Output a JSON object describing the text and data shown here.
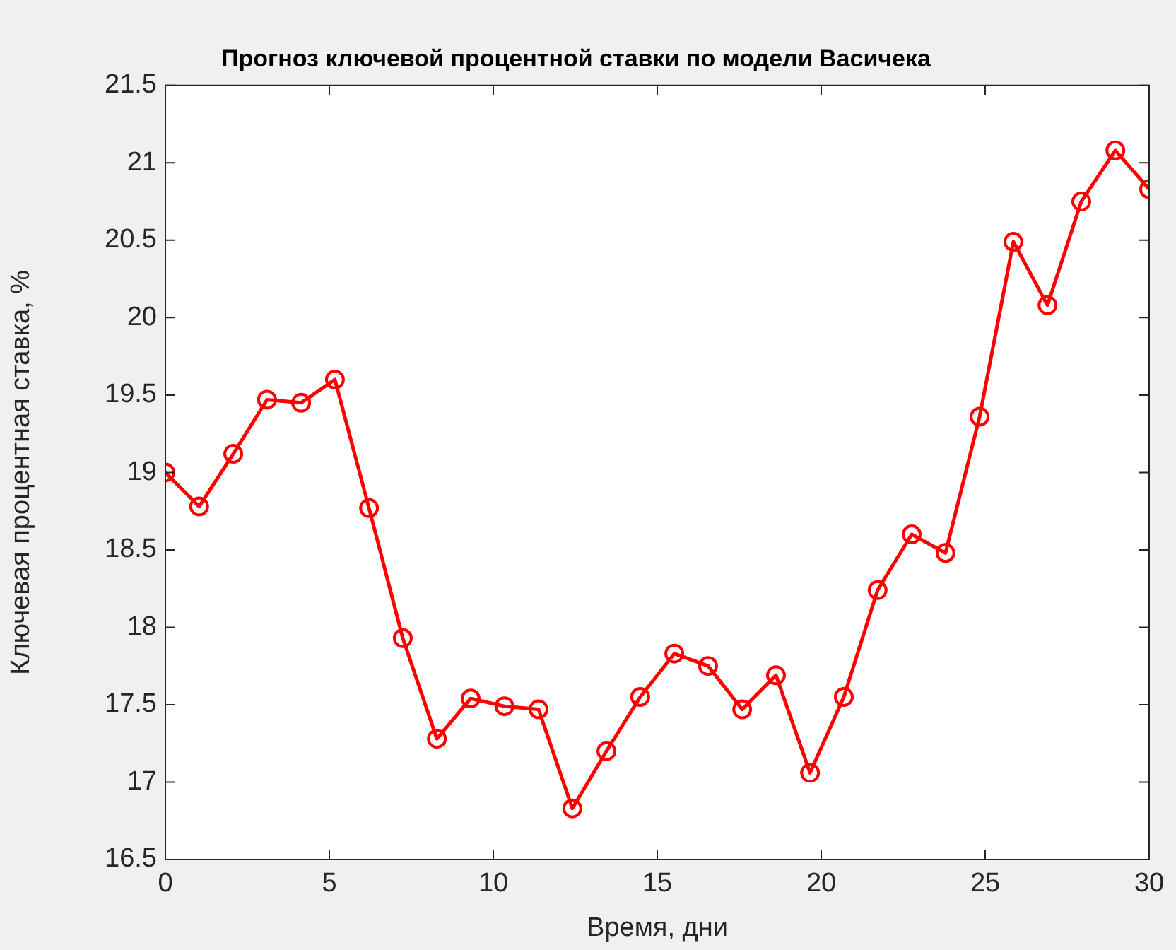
{
  "chart_data": {
    "type": "line",
    "title": "Прогноз ключевой процентной ставки по модели Васичека",
    "xlabel": "Время, дни",
    "ylabel": "Ключевая процентная ставка, %",
    "x": [
      0,
      1.03,
      2.07,
      3.1,
      4.14,
      5.17,
      6.21,
      7.24,
      8.28,
      9.31,
      10.34,
      11.38,
      12.41,
      13.45,
      14.48,
      15.52,
      16.55,
      17.59,
      18.62,
      19.66,
      20.69,
      21.72,
      22.76,
      23.79,
      24.83,
      25.86,
      26.9,
      27.93,
      28.97,
      30
    ],
    "series": [
      {
        "color": "#ff0000",
        "values": [
          19.0,
          18.78,
          19.12,
          19.47,
          19.45,
          19.6,
          18.77,
          17.93,
          17.28,
          17.54,
          17.49,
          17.47,
          16.83,
          17.2,
          17.55,
          17.83,
          17.75,
          17.47,
          17.69,
          17.06,
          17.55,
          18.24,
          18.6,
          18.48,
          19.36,
          20.49,
          20.08,
          20.75,
          21.08,
          20.83
        ]
      }
    ],
    "xlim": [
      0,
      30
    ],
    "xticks": [
      0,
      5,
      10,
      15,
      20,
      25,
      30
    ],
    "ylim": [
      16.5,
      21.5
    ],
    "yticks": [
      16.5,
      17,
      17.5,
      18,
      18.5,
      19,
      19.5,
      20,
      20.5,
      21,
      21.5
    ],
    "grid": false,
    "legend": false,
    "marker": "circle",
    "line_style": "solid"
  }
}
